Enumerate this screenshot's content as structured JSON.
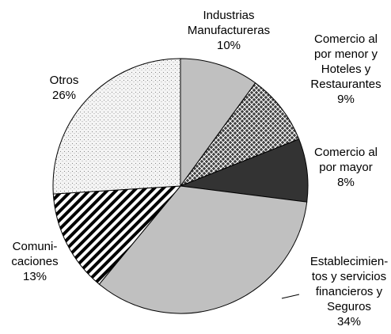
{
  "chart_data": {
    "type": "pie",
    "categories": [
      "Industrias\nManufactureras",
      "Comercio al\npor menor y\nHoteles y\nRestaurantes",
      "Comercio al\npor mayor",
      "Establecimien-\ntos y servicios\nfinancieros y\nSeguros",
      "Comuni-\ncaciones",
      "Otros"
    ],
    "values": [
      10,
      9,
      8,
      34,
      13,
      26
    ],
    "value_labels": [
      "10%",
      "9%",
      "8%",
      "34%",
      "13%",
      "26%"
    ],
    "colors": [
      "#c0c0c0",
      "#404040",
      "#333333",
      "#c0c0c0",
      "#ffffff",
      "#eeeeee"
    ],
    "patterns": [
      "solid",
      "crosshatch",
      "solid",
      "solid",
      "diagonal",
      "dots"
    ]
  }
}
